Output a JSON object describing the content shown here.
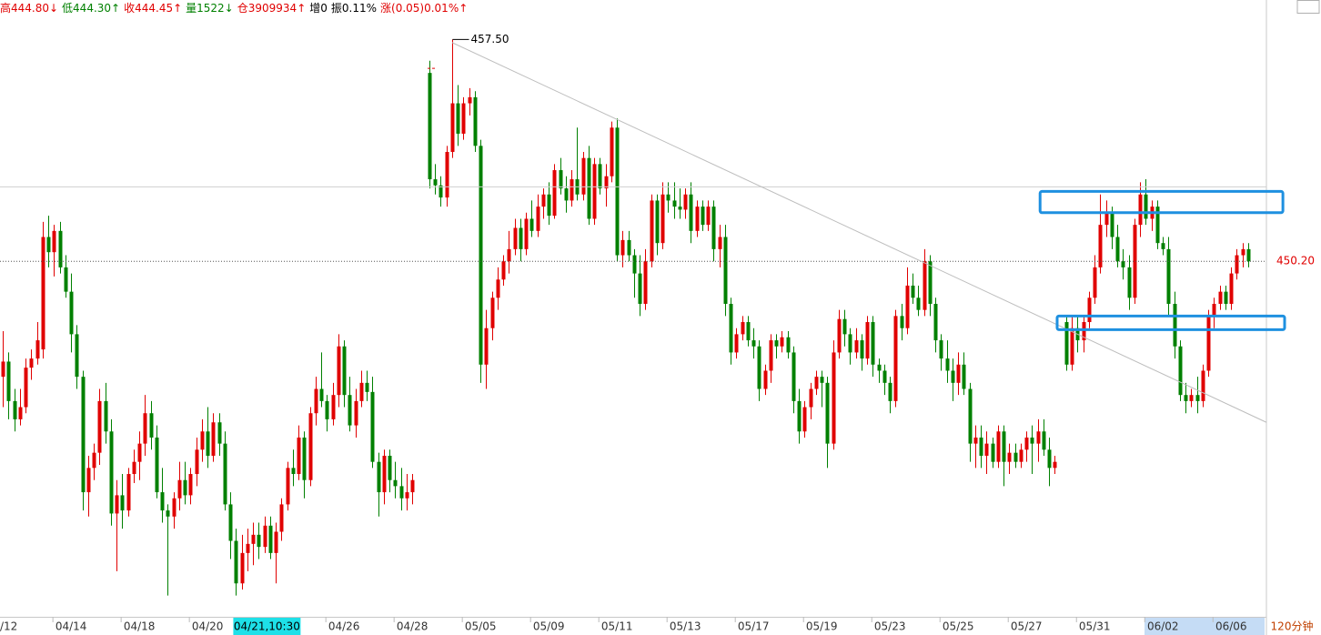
{
  "chart_data": {
    "type": "candlestick",
    "header": [
      {
        "text": "高444.80↓",
        "color": "#e00000"
      },
      {
        "text": "低444.30↑",
        "color": "#008000"
      },
      {
        "text": "收444.45↑",
        "color": "#e00000"
      },
      {
        "text": "量1522↓",
        "color": "#008000"
      },
      {
        "text": "仓3909934↑",
        "color": "#e00000"
      },
      {
        "text": "增0",
        "color": "#000000"
      },
      {
        "text": "振0.11%",
        "color": "#000000"
      },
      {
        "text": "涨(0.05)0.01%↑",
        "color": "#e00000"
      }
    ],
    "period": "120分钟",
    "up_color": "#e00000",
    "down_color": "#008000",
    "xlim": [
      -0.5,
      222.2
    ],
    "ylim": [
      438.5,
      458.8
    ],
    "xticks": [
      {
        "value": -0.5,
        "label": "/12"
      },
      {
        "value": 12,
        "label": "04/14"
      },
      {
        "value": 24,
        "label": "04/18"
      },
      {
        "value": 36,
        "label": "04/20"
      },
      {
        "value": 60,
        "label": "04/26"
      },
      {
        "value": 72,
        "label": "04/28"
      },
      {
        "value": 84,
        "label": "05/05"
      },
      {
        "value": 96,
        "label": "05/09"
      },
      {
        "value": 108,
        "label": "05/11"
      },
      {
        "value": 120,
        "label": "05/13"
      },
      {
        "value": 132,
        "label": "05/17"
      },
      {
        "value": 144,
        "label": "05/19"
      },
      {
        "value": 156,
        "label": "05/23"
      },
      {
        "value": 168,
        "label": "05/25"
      },
      {
        "value": 180,
        "label": "05/27"
      },
      {
        "value": 192,
        "label": "05/31"
      },
      {
        "value": 204,
        "label": "06/02"
      },
      {
        "value": 216,
        "label": "06/06"
      }
    ],
    "cursor_label": {
      "value": 41,
      "label": "04/21,10:30"
    },
    "last_price": {
      "value": 450.2,
      "label": "450.20"
    },
    "hline": 452.65,
    "high_annotation": {
      "index": 79,
      "value": 457.5,
      "label": "457.50"
    },
    "trendline": {
      "x": [
        79,
        222.2
      ],
      "y": [
        457.4,
        444.9
      ]
    },
    "boxes": [
      {
        "x": [
          182.4,
          225.1
        ],
        "y": [
          451.8,
          452.5
        ],
        "color": "#1e90e0"
      },
      {
        "x": [
          185.4,
          225.4
        ],
        "y": [
          447.95,
          448.4
        ],
        "color": "#1e90e0"
      }
    ],
    "values": [
      [
        446.4,
        447.9,
        445.4,
        446.9
      ],
      [
        446.9,
        447.2,
        445.0,
        445.6
      ],
      [
        445.6,
        446.0,
        444.6,
        445.0
      ],
      [
        445.0,
        446.0,
        444.8,
        445.4
      ],
      [
        445.4,
        447.0,
        445.2,
        446.7
      ],
      [
        446.7,
        447.3,
        446.3,
        447.0
      ],
      [
        447.0,
        448.2,
        446.8,
        447.6
      ],
      [
        447.3,
        451.5,
        447.0,
        451.0
      ],
      [
        451.0,
        451.7,
        450.0,
        450.5
      ],
      [
        450.5,
        451.4,
        449.7,
        451.2
      ],
      [
        451.2,
        451.5,
        449.8,
        450.0
      ],
      [
        450.0,
        450.4,
        449.0,
        449.2
      ],
      [
        449.2,
        449.8,
        447.2,
        447.8
      ],
      [
        447.8,
        448.1,
        446.0,
        446.4
      ],
      [
        446.4,
        446.6,
        442.0,
        442.6
      ],
      [
        442.6,
        443.8,
        441.8,
        443.4
      ],
      [
        443.4,
        444.2,
        443.0,
        443.9
      ],
      [
        443.9,
        446.0,
        443.5,
        445.6
      ],
      [
        445.6,
        446.2,
        444.2,
        444.6
      ],
      [
        444.6,
        445.0,
        441.5,
        441.9
      ],
      [
        441.9,
        443.0,
        440.0,
        442.5
      ],
      [
        442.5,
        443.2,
        441.4,
        442.0
      ],
      [
        442.0,
        443.4,
        441.8,
        443.2
      ],
      [
        443.2,
        444.0,
        442.9,
        443.6
      ],
      [
        443.6,
        444.6,
        443.0,
        444.2
      ],
      [
        444.2,
        445.8,
        443.8,
        445.2
      ],
      [
        445.2,
        445.6,
        444.0,
        444.4
      ],
      [
        444.4,
        444.8,
        442.4,
        442.6
      ],
      [
        442.6,
        443.4,
        441.6,
        442.0
      ],
      [
        442.0,
        442.2,
        439.2,
        441.8
      ],
      [
        441.8,
        442.6,
        441.4,
        442.4
      ],
      [
        442.4,
        443.6,
        442.0,
        443.0
      ],
      [
        443.0,
        443.6,
        442.2,
        442.5
      ],
      [
        442.5,
        443.4,
        442.2,
        443.2
      ],
      [
        443.2,
        444.4,
        442.8,
        444.0
      ],
      [
        444.0,
        445.0,
        443.6,
        444.6
      ],
      [
        444.6,
        445.4,
        443.4,
        443.8
      ],
      [
        443.8,
        445.2,
        443.6,
        444.9
      ],
      [
        444.9,
        445.2,
        443.8,
        444.2
      ],
      [
        444.2,
        444.6,
        442.0,
        442.2
      ],
      [
        442.2,
        442.6,
        440.4,
        441.0
      ],
      [
        441.0,
        441.4,
        439.2,
        439.6
      ],
      [
        439.6,
        441.2,
        439.4,
        440.6
      ],
      [
        440.6,
        441.4,
        440.0,
        440.9
      ],
      [
        440.9,
        441.6,
        440.2,
        441.2
      ],
      [
        441.2,
        441.6,
        440.4,
        440.8
      ],
      [
        440.8,
        441.8,
        440.6,
        441.5
      ],
      [
        441.5,
        441.8,
        440.4,
        440.6
      ],
      [
        440.6,
        441.6,
        439.6,
        441.3
      ],
      [
        441.3,
        442.4,
        441.0,
        442.2
      ],
      [
        442.2,
        443.6,
        442.0,
        443.4
      ],
      [
        443.4,
        444.0,
        442.8,
        443.2
      ],
      [
        443.2,
        444.8,
        443.0,
        444.4
      ],
      [
        444.4,
        444.6,
        442.4,
        443.0
      ],
      [
        443.0,
        445.4,
        442.8,
        445.2
      ],
      [
        445.2,
        446.4,
        444.8,
        446.0
      ],
      [
        446.0,
        447.2,
        445.4,
        445.6
      ],
      [
        445.6,
        445.8,
        444.6,
        445.0
      ],
      [
        445.0,
        446.2,
        444.8,
        445.8
      ],
      [
        445.8,
        447.8,
        445.4,
        447.4
      ],
      [
        447.4,
        447.6,
        445.4,
        445.8
      ],
      [
        445.8,
        446.4,
        444.6,
        444.8
      ],
      [
        444.8,
        446.0,
        444.4,
        445.6
      ],
      [
        445.6,
        446.6,
        445.4,
        446.2
      ],
      [
        446.2,
        446.6,
        445.6,
        445.9
      ],
      [
        445.9,
        446.4,
        443.4,
        443.6
      ],
      [
        443.6,
        443.9,
        441.8,
        442.6
      ],
      [
        442.6,
        444.0,
        442.2,
        443.8
      ],
      [
        443.8,
        444.0,
        442.6,
        443.0
      ],
      [
        443.0,
        443.6,
        442.4,
        442.8
      ],
      [
        442.8,
        443.4,
        442.0,
        442.4
      ],
      [
        442.4,
        443.2,
        442.0,
        442.6
      ],
      [
        442.6,
        443.2,
        442.2,
        443.0
      ],
      null,
      null,
      [
        456.4,
        456.8,
        452.6,
        452.9
      ],
      [
        452.9,
        453.4,
        452.4,
        452.7
      ],
      [
        452.7,
        453.0,
        452.0,
        452.3
      ],
      [
        452.3,
        454.0,
        452.0,
        453.8
      ],
      [
        453.8,
        457.5,
        453.6,
        455.4
      ],
      [
        455.4,
        456.0,
        454.0,
        454.4
      ],
      [
        454.4,
        455.6,
        454.2,
        455.4
      ],
      [
        455.4,
        455.9,
        455.0,
        455.6
      ],
      [
        455.6,
        455.8,
        453.8,
        454.0
      ],
      [
        454.0,
        454.2,
        446.2,
        446.8
      ],
      [
        446.8,
        448.6,
        446.0,
        448.0
      ],
      [
        448.0,
        449.2,
        447.6,
        449.0
      ],
      [
        449.0,
        450.0,
        448.6,
        449.6
      ],
      [
        449.6,
        450.4,
        449.4,
        450.2
      ],
      [
        450.2,
        451.2,
        449.8,
        450.6
      ],
      [
        450.6,
        451.6,
        450.4,
        451.3
      ],
      [
        451.3,
        451.6,
        450.2,
        450.6
      ],
      [
        450.6,
        451.8,
        450.4,
        451.6
      ],
      [
        451.6,
        452.2,
        451.0,
        451.2
      ],
      [
        451.2,
        452.4,
        451.0,
        452.0
      ],
      [
        452.0,
        452.6,
        451.6,
        452.4
      ],
      [
        452.4,
        452.8,
        451.4,
        451.7
      ],
      [
        451.7,
        453.4,
        451.6,
        453.2
      ],
      [
        453.2,
        453.6,
        452.4,
        452.6
      ],
      [
        452.6,
        453.0,
        451.8,
        452.2
      ],
      [
        452.2,
        453.2,
        452.0,
        452.9
      ],
      [
        452.9,
        454.6,
        452.2,
        452.4
      ],
      [
        452.4,
        453.8,
        452.2,
        453.6
      ],
      [
        453.6,
        454.0,
        451.4,
        451.6
      ],
      [
        451.6,
        453.6,
        451.4,
        453.4
      ],
      [
        453.4,
        453.6,
        452.4,
        452.6
      ],
      [
        452.6,
        453.4,
        452.0,
        453.0
      ],
      [
        453.0,
        454.8,
        452.8,
        454.6
      ],
      [
        454.6,
        454.9,
        450.2,
        450.4
      ],
      [
        450.4,
        451.2,
        450.0,
        450.9
      ],
      [
        450.9,
        451.2,
        450.2,
        450.4
      ],
      [
        450.4,
        450.6,
        449.0,
        449.8
      ],
      [
        449.8,
        450.4,
        448.4,
        448.8
      ],
      [
        448.8,
        450.6,
        448.6,
        450.2
      ],
      [
        450.2,
        452.4,
        450.0,
        452.2
      ],
      [
        452.2,
        452.4,
        450.4,
        450.8
      ],
      [
        450.8,
        452.8,
        450.6,
        452.4
      ],
      [
        452.4,
        452.8,
        451.8,
        452.2
      ],
      [
        452.2,
        452.8,
        451.6,
        452.0
      ],
      [
        452.0,
        452.6,
        451.6,
        451.9
      ],
      [
        451.9,
        452.6,
        451.6,
        452.4
      ],
      [
        452.4,
        452.8,
        450.8,
        451.2
      ],
      [
        451.2,
        452.2,
        451.0,
        452.0
      ],
      [
        452.0,
        452.2,
        451.2,
        451.4
      ],
      [
        451.4,
        452.2,
        451.2,
        452.0
      ],
      [
        452.0,
        452.2,
        450.2,
        450.6
      ],
      [
        450.6,
        451.4,
        450.0,
        451.0
      ],
      [
        451.0,
        451.4,
        448.4,
        448.8
      ],
      [
        448.8,
        449.0,
        446.8,
        447.2
      ],
      [
        447.2,
        448.0,
        447.0,
        447.8
      ],
      [
        447.8,
        448.4,
        447.6,
        448.2
      ],
      [
        448.2,
        448.4,
        447.4,
        447.6
      ],
      [
        447.6,
        448.0,
        447.0,
        447.4
      ],
      [
        447.4,
        447.6,
        445.6,
        446.0
      ],
      [
        446.0,
        446.8,
        445.8,
        446.6
      ],
      [
        446.6,
        447.8,
        446.2,
        447.6
      ],
      [
        447.6,
        447.8,
        447.0,
        447.4
      ],
      [
        447.4,
        447.9,
        447.2,
        447.7
      ],
      [
        447.7,
        447.9,
        447.0,
        447.2
      ],
      [
        447.2,
        447.4,
        445.2,
        445.6
      ],
      [
        445.6,
        446.0,
        444.2,
        444.6
      ],
      [
        444.6,
        445.6,
        444.4,
        445.4
      ],
      [
        445.4,
        446.2,
        445.0,
        446.0
      ],
      [
        446.0,
        446.6,
        445.8,
        446.4
      ],
      [
        446.4,
        446.6,
        445.4,
        446.2
      ],
      [
        446.2,
        446.4,
        443.4,
        444.2
      ],
      [
        444.2,
        447.6,
        444.0,
        447.2
      ],
      [
        447.2,
        448.6,
        447.0,
        448.3
      ],
      [
        448.3,
        448.6,
        447.4,
        447.8
      ],
      [
        447.8,
        448.0,
        446.8,
        447.2
      ],
      [
        447.2,
        448.0,
        447.0,
        447.6
      ],
      [
        447.6,
        447.8,
        446.6,
        447.0
      ],
      [
        447.0,
        448.4,
        446.8,
        448.2
      ],
      [
        448.2,
        448.4,
        446.4,
        446.8
      ],
      [
        446.8,
        447.0,
        446.2,
        446.6
      ],
      [
        446.6,
        446.8,
        445.8,
        446.2
      ],
      [
        446.2,
        446.4,
        445.2,
        445.6
      ],
      [
        445.6,
        448.6,
        445.4,
        448.4
      ],
      [
        448.4,
        448.8,
        447.6,
        448.0
      ],
      [
        448.0,
        450.0,
        447.8,
        449.4
      ],
      [
        449.4,
        449.8,
        448.8,
        449.0
      ],
      [
        449.0,
        449.4,
        448.4,
        448.6
      ],
      [
        448.6,
        450.6,
        448.4,
        450.2
      ],
      [
        450.2,
        450.4,
        448.4,
        448.8
      ],
      [
        448.8,
        449.0,
        447.2,
        447.6
      ],
      [
        447.6,
        447.8,
        446.6,
        447.0
      ],
      [
        447.0,
        447.6,
        446.2,
        446.6
      ],
      [
        446.6,
        447.0,
        445.6,
        446.2
      ],
      [
        446.2,
        447.2,
        445.8,
        446.8
      ],
      [
        446.8,
        447.2,
        445.8,
        446.0
      ],
      [
        446.0,
        446.2,
        443.6,
        444.2
      ],
      [
        444.2,
        444.8,
        443.4,
        444.4
      ],
      [
        444.4,
        444.8,
        443.4,
        443.8
      ],
      [
        443.8,
        444.6,
        443.2,
        444.2
      ],
      [
        444.2,
        444.4,
        443.4,
        443.6
      ],
      [
        443.6,
        444.8,
        443.4,
        444.6
      ],
      [
        444.6,
        444.8,
        442.8,
        443.6
      ],
      [
        443.6,
        444.2,
        443.2,
        443.9
      ],
      [
        443.9,
        444.2,
        443.4,
        443.6
      ],
      [
        443.6,
        444.2,
        443.4,
        444.0
      ],
      [
        444.0,
        444.6,
        443.6,
        444.4
      ],
      [
        444.4,
        444.8,
        443.2,
        444.2
      ],
      [
        444.2,
        445.0,
        443.6,
        444.6
      ],
      [
        444.6,
        445.0,
        443.8,
        444.0
      ],
      [
        444.0,
        444.4,
        442.8,
        443.4
      ],
      [
        443.4,
        443.8,
        443.2,
        443.6
      ],
      null,
      [
        448.2,
        448.4,
        446.6,
        446.8
      ],
      [
        446.8,
        448.4,
        446.6,
        448.0
      ],
      [
        448.0,
        448.4,
        447.2,
        447.6
      ],
      [
        447.6,
        448.4,
        447.2,
        448.2
      ],
      [
        448.2,
        449.2,
        448.0,
        449.0
      ],
      [
        449.0,
        450.4,
        448.8,
        450.0
      ],
      [
        450.0,
        452.4,
        449.8,
        451.4
      ],
      [
        451.4,
        452.2,
        451.0,
        451.8
      ],
      [
        451.8,
        452.0,
        450.6,
        451.0
      ],
      [
        451.0,
        451.4,
        450.0,
        450.2
      ],
      [
        450.2,
        450.6,
        449.6,
        450.0
      ],
      [
        450.0,
        450.4,
        448.6,
        449.0
      ],
      [
        449.0,
        451.6,
        448.8,
        451.4
      ],
      [
        451.4,
        452.8,
        451.0,
        452.4
      ],
      [
        452.4,
        452.9,
        451.4,
        451.6
      ],
      [
        451.6,
        452.2,
        451.2,
        452.0
      ],
      [
        452.0,
        452.2,
        450.6,
        450.8
      ],
      [
        450.8,
        451.0,
        450.4,
        450.6
      ],
      [
        450.6,
        451.0,
        448.4,
        448.8
      ],
      [
        448.8,
        449.2,
        447.0,
        447.4
      ],
      [
        447.4,
        447.6,
        445.6,
        445.8
      ],
      [
        445.8,
        446.2,
        445.2,
        445.6
      ],
      [
        445.6,
        446.0,
        445.4,
        445.8
      ],
      [
        445.8,
        446.4,
        445.2,
        445.6
      ],
      [
        445.6,
        446.8,
        445.4,
        446.6
      ],
      [
        446.6,
        448.6,
        446.4,
        448.4
      ],
      [
        448.4,
        449.0,
        448.0,
        448.8
      ],
      [
        448.8,
        449.4,
        448.6,
        449.2
      ],
      [
        449.2,
        449.4,
        448.6,
        448.8
      ],
      [
        448.8,
        450.0,
        448.6,
        449.8
      ],
      [
        449.8,
        450.6,
        449.6,
        450.4
      ],
      [
        450.4,
        450.8,
        450.0,
        450.6
      ],
      [
        450.6,
        450.8,
        450.0,
        450.2
      ]
    ]
  }
}
